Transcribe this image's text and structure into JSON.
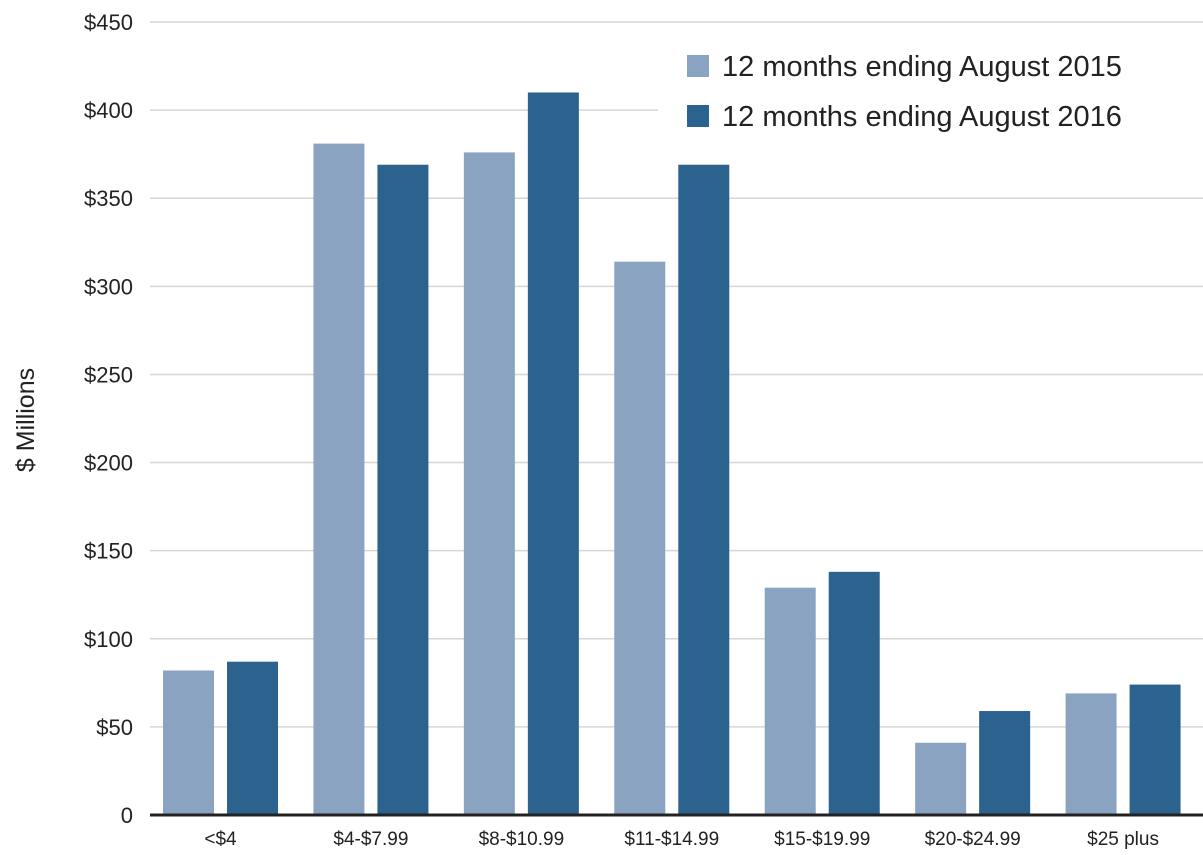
{
  "chart_data": {
    "type": "bar",
    "title": "",
    "xlabel": "",
    "ylabel": "$ Millions",
    "ylim": [
      0,
      450
    ],
    "yticks": [
      0,
      50,
      100,
      150,
      200,
      250,
      300,
      350,
      400,
      450
    ],
    "ytick_labels": [
      "0",
      "$50",
      "$100",
      "$150",
      "$200",
      "$250",
      "$300",
      "$350",
      "$400",
      "$450"
    ],
    "categories": [
      "<$4",
      "$4-$7.99",
      "$8-$10.99",
      "$11-$14.99",
      "$15-$19.99",
      "$20-$24.99",
      "$25 plus"
    ],
    "series": [
      {
        "name": "12 months ending August 2015",
        "color": "#8aa3c1",
        "values": [
          82,
          381,
          376,
          314,
          129,
          41,
          69
        ]
      },
      {
        "name": "12 months ending August 2016",
        "color": "#2b628e",
        "values": [
          87,
          369,
          410,
          369,
          138,
          59,
          74
        ]
      }
    ],
    "grid": true,
    "legend_position": "top-right"
  }
}
